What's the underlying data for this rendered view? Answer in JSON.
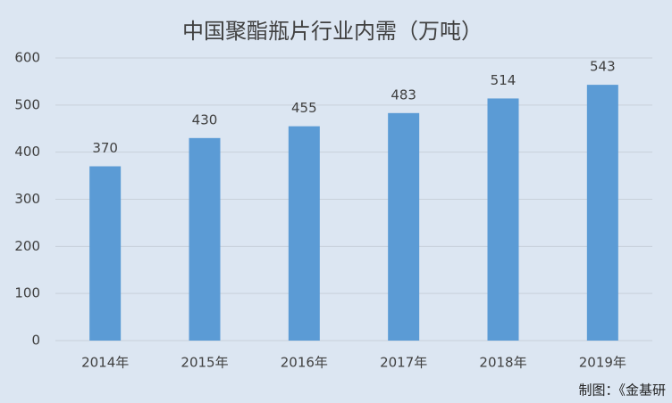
{
  "chart_data": {
    "type": "bar",
    "title": "中国聚酯瓶片行业内需（万吨）",
    "categories": [
      "2014年",
      "2015年",
      "2016年",
      "2017年",
      "2018年",
      "2019年"
    ],
    "values": [
      370,
      430,
      455,
      483,
      514,
      543
    ],
    "color": "#5b9bd5",
    "ylim": [
      0,
      600
    ],
    "yticks": [
      0,
      100,
      200,
      300,
      400,
      500,
      600
    ],
    "grid": true,
    "source": "制图：《金基研"
  }
}
